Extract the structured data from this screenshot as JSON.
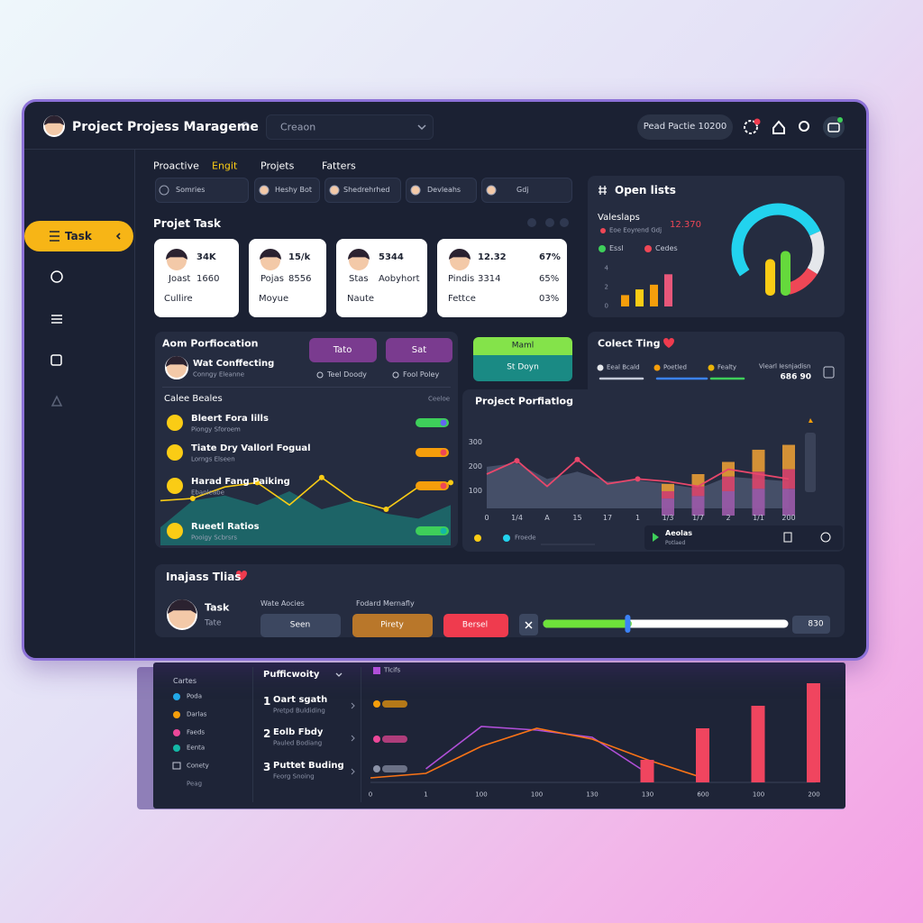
{
  "header": {
    "title": "Project Projess Marageme",
    "search": "Creaon",
    "badge": "Pead Pactie 10200"
  },
  "sidebar": {
    "active": "Task"
  },
  "tabs": [
    "Proactive",
    "Engit",
    "Projets",
    "Fatters"
  ],
  "filters": [
    "Somries",
    "Heshy Bot",
    "Shedrehrhed",
    "Devleahs",
    "Gdj"
  ],
  "project_task": {
    "title": "Projet Task",
    "cards": [
      [
        "34K",
        "Joast",
        "1660",
        "Cullire"
      ],
      [
        "15/k",
        "Pojas",
        "8556",
        "Moyue"
      ],
      [
        "5344",
        "Stas",
        "Aobyhort",
        "Naute"
      ],
      [
        "12.32",
        "67%",
        "Pindis",
        "3314",
        "65%",
        "Fettce",
        "03%"
      ]
    ]
  },
  "open_lists": {
    "title": "Open lists",
    "subtitle": "Valeslaps",
    "caption": "Eoe Eoyrend Gdj",
    "figure": "12.370",
    "legend": [
      {
        "name": "Essl",
        "color": "#3ecf5a"
      },
      {
        "name": "Cedes",
        "color": "#ef4756"
      }
    ],
    "bars": {
      "values": [
        1.2,
        1.8,
        2.3,
        3.4
      ],
      "colors": [
        "#f59e0b",
        "#facc15",
        "#f59e0b",
        "#e8577a"
      ],
      "ylim": [
        0,
        4
      ],
      "yticks": [
        0,
        2,
        4
      ]
    },
    "gauge": {
      "values": [
        62,
        18,
        14
      ],
      "colors": [
        "#22d3ee",
        "#e5e7eb",
        "#ef4756"
      ]
    },
    "inner_bars": {
      "values": [
        2.7,
        3.3
      ],
      "colors": [
        "#facc15",
        "#65d93c"
      ]
    }
  },
  "aom": {
    "title": "Aom Porfiocation",
    "buttons": [
      "Tato",
      "Sat"
    ],
    "person": "Wat Conffecting",
    "person_sub": "Conngy Eleanne",
    "options": [
      "Teel Doody",
      "Fool Poley"
    ],
    "list_title": "Calee Beales",
    "list_action": "Ceeloe",
    "items": [
      {
        "title": "Bleert Fora lills",
        "sub": "Piongy Sforoem"
      },
      {
        "title": "Tiate Dry Vallorl Fogual",
        "sub": "Lorngs Elseen"
      },
      {
        "title": "Harad Fang Paiking",
        "sub": "Ebanleabe"
      },
      {
        "title": "Rueetl Ratios",
        "sub": "Pooigy Scbrsrs"
      }
    ],
    "line": {
      "color": "#facc15",
      "values": [
        62,
        65,
        81,
        87,
        56,
        94,
        62,
        50,
        81,
        87
      ]
    },
    "area": {
      "color": "#1d6a6c",
      "values": [
        25,
        62,
        69,
        56,
        75,
        50,
        62,
        44,
        37,
        56
      ]
    }
  },
  "middle": {
    "badge": "Maml",
    "button": "St Doyn"
  },
  "portfolio": {
    "title": "Project Porfiatlog",
    "categories": [
      "0",
      "1/4",
      "A",
      "15",
      "17",
      "1",
      "1/3",
      "1/7",
      "2",
      "1/1",
      "200"
    ],
    "ylim": [
      0,
      340
    ],
    "yticks": [
      100,
      200,
      300
    ],
    "line": {
      "color": "#e8476b",
      "values": [
        170,
        225,
        120,
        230,
        130,
        150,
        140,
        120,
        190,
        170,
        150
      ]
    },
    "area": {
      "color": "#4b5670",
      "values": [
        200,
        215,
        150,
        180,
        140,
        145,
        130,
        110,
        160,
        150,
        140
      ]
    },
    "stacks": [
      {
        "color": "#9a5aa8",
        "values": [
          null,
          null,
          null,
          null,
          null,
          null,
          70,
          80,
          100,
          110,
          110
        ]
      },
      {
        "color": "#d9456b",
        "values": [
          null,
          null,
          null,
          null,
          null,
          null,
          30,
          40,
          60,
          70,
          80
        ]
      },
      {
        "color": "#e39a35",
        "values": [
          null,
          null,
          null,
          null,
          null,
          null,
          30,
          50,
          60,
          90,
          100
        ]
      }
    ],
    "footer_legend": "Froede"
  },
  "collect": {
    "title": "Colect Ting",
    "legend": [
      {
        "name": "Eeal Bcald",
        "color": "#e5e7eb"
      },
      {
        "name": "Poetled",
        "color": "#f59e0b"
      },
      {
        "name": "Fealty",
        "color": "#eab308"
      }
    ],
    "extra": "Viearl Iesnjadisn",
    "figure": "686 90",
    "player_title": "Aeolas",
    "player_sub": "Potlaed"
  },
  "bottom": {
    "title": "Inajass Tlias",
    "task": "Task",
    "task_sub": "Tate",
    "col1": "Wate Aocies",
    "col2": "Fodard Mernafly",
    "buttons": [
      "Seen",
      "Pirety",
      "Bersel"
    ],
    "progress": 34,
    "value": "830"
  },
  "lower": {
    "legend_title": "Cartes",
    "legend": [
      {
        "name": "Poda",
        "color": "#22a8e8"
      },
      {
        "name": "Darlas",
        "color": "#f59e0b"
      },
      {
        "name": "Faeds",
        "color": "#ec4899"
      },
      {
        "name": "Eenta",
        "color": "#14b8a6"
      }
    ],
    "extra": "Conety",
    "extra2": "Peag",
    "list_title": "Pufficwoity",
    "items": [
      {
        "n": "1",
        "title": "Oart sgath",
        "sub": "Pretpd Buldiding"
      },
      {
        "n": "2",
        "title": "Eolb Fbdy",
        "sub": "Pauled Bodiang"
      },
      {
        "n": "3",
        "title": "Puttet Buding",
        "sub": "Feorg Snoing"
      }
    ],
    "chart": {
      "legend_title": "Tlcifs",
      "categories": [
        "0",
        "1",
        "100",
        "100",
        "130",
        "130",
        "600",
        "100",
        "200"
      ],
      "lines": [
        {
          "color": "#b04fd8",
          "values": [
            null,
            15,
            62,
            58,
            50,
            10,
            null,
            null,
            null
          ]
        },
        {
          "color": "#f97316",
          "values": [
            5,
            10,
            40,
            60,
            48,
            25,
            5,
            null,
            null
          ]
        }
      ],
      "bars": {
        "color": "#f0455f",
        "values": [
          null,
          null,
          null,
          null,
          null,
          25,
          60,
          85,
          110
        ]
      }
    }
  }
}
